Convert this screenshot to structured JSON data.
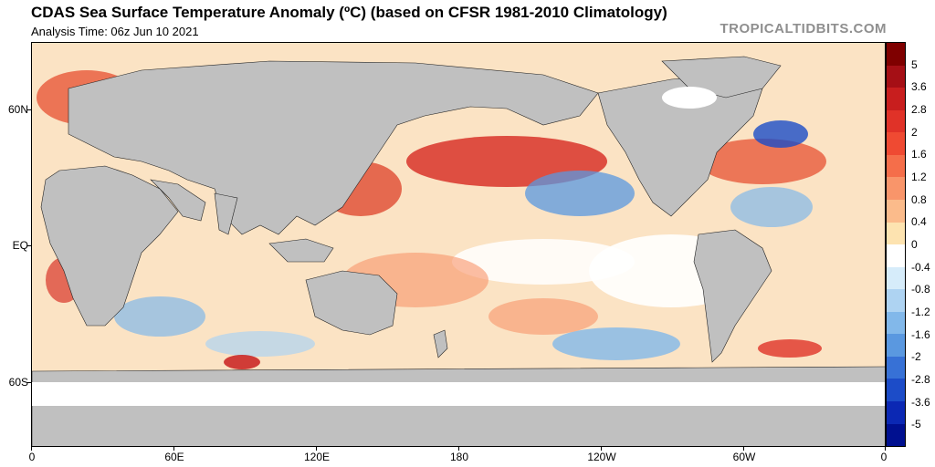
{
  "header": {
    "title": "CDAS Sea Surface Temperature Anomaly (ºC) (based on CFSR 1981-2010 Climatology)",
    "analysis_time": "Analysis Time: 06z Jun 10 2021",
    "brand": "TROPICALTIDBITS.COM"
  },
  "map": {
    "lat_labels": [
      "60N",
      "EQ",
      "60S"
    ],
    "lon_labels": [
      "0",
      "60E",
      "120E",
      "180",
      "120W",
      "60W",
      "0"
    ],
    "land_color": "#c0c0c0",
    "ice_color": "#ffffff"
  },
  "colorbar": {
    "labels": [
      "5",
      "3.6",
      "2.8",
      "2",
      "1.6",
      "1.2",
      "0.8",
      "0.4",
      "0",
      "-0.4",
      "-0.8",
      "-1.2",
      "-1.6",
      "-2",
      "-2.8",
      "-3.6",
      "-5"
    ],
    "colors": [
      "#7f0000",
      "#a50f15",
      "#c81e1e",
      "#e03228",
      "#ef4a32",
      "#f56e4a",
      "#f9956a",
      "#fbbb8b",
      "#fde3b0",
      "#ffffff",
      "#d6ecfa",
      "#aed3f2",
      "#82b8ea",
      "#5a98e0",
      "#3771d6",
      "#1c4cc8",
      "#0b28b4",
      "#001090"
    ]
  }
}
